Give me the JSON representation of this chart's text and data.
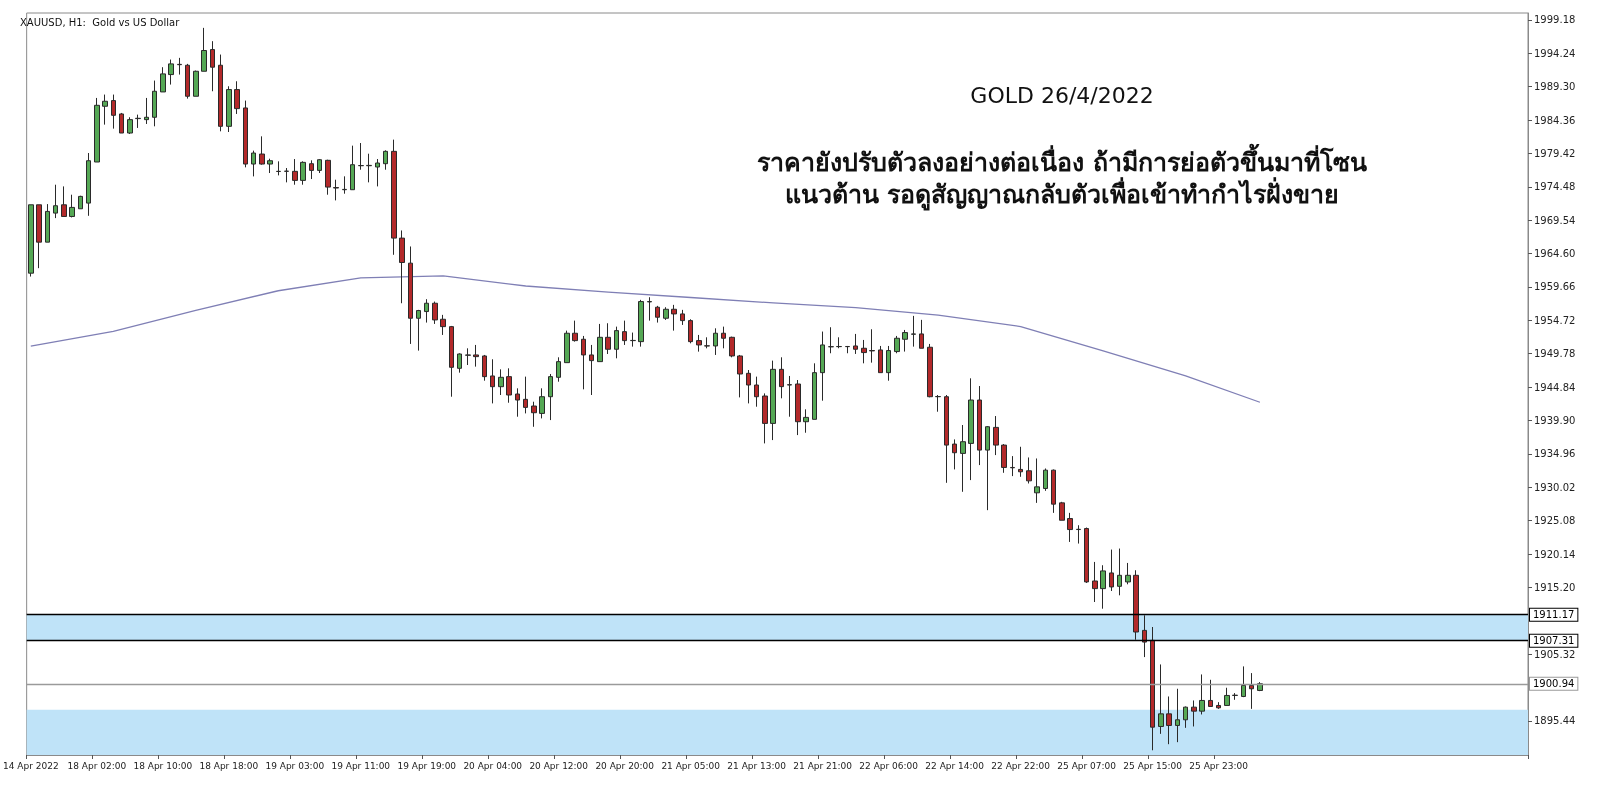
{
  "chart_data": {
    "type": "candlestick",
    "title": "XAUUSD, H1:  Gold vs US Dollar",
    "annotations": [
      "GOLD 26/4/2022",
      "ราคายังปรับตัวลงอย่างต่อเนื่อง ถ้ามีการย่อตัวขึ้นมาที่โซน",
      "แนวต้าน รอดูสัญญาณกลับตัวเพื่อเข้าทำกำไรฝั่งขาย"
    ],
    "categories": [
      "14 Apr 2022",
      null,
      null,
      null,
      null,
      null,
      null,
      null,
      "18 Apr 02:00",
      null,
      null,
      null,
      null,
      null,
      null,
      null,
      "18 Apr 10:00",
      null,
      null,
      null,
      null,
      null,
      null,
      null,
      "18 Apr 18:00",
      null,
      null,
      null,
      null,
      null,
      null,
      null,
      "19 Apr 03:00",
      null,
      null,
      null,
      null,
      null,
      null,
      null,
      "19 Apr 11:00",
      null,
      null,
      null,
      null,
      null,
      null,
      null,
      "19 Apr 19:00",
      null,
      null,
      null,
      null,
      null,
      null,
      null,
      "20 Apr 04:00",
      null,
      null,
      null,
      null,
      null,
      null,
      null,
      "20 Apr 12:00",
      null,
      null,
      null,
      null,
      null,
      null,
      null,
      "20 Apr 20:00",
      null,
      null,
      null,
      null,
      null,
      null,
      null,
      "21 Apr 05:00",
      null,
      null,
      null,
      null,
      null,
      null,
      null,
      "21 Apr 13:00",
      null,
      null,
      null,
      null,
      null,
      null,
      null,
      "21 Apr 21:00",
      null,
      null,
      null,
      null,
      null,
      null,
      null,
      "22 Apr 06:00",
      null,
      null,
      null,
      null,
      null,
      null,
      null,
      "22 Apr 14:00",
      null,
      null,
      null,
      null,
      null,
      null,
      null,
      "22 Apr 22:00",
      null,
      null,
      null,
      null,
      null,
      null,
      null,
      "25 Apr 07:00",
      null,
      null,
      null,
      null,
      null,
      null,
      null,
      "25 Apr 15:00",
      null,
      null,
      null,
      null,
      null,
      null,
      null,
      "25 Apr 23:00",
      null,
      null,
      null,
      null,
      null,
      null,
      null,
      null,
      null,
      null,
      null,
      null,
      null,
      null,
      null,
      null,
      null,
      null,
      null,
      null,
      null,
      null,
      null,
      null,
      null,
      null,
      null,
      null,
      null,
      null,
      null,
      null,
      null,
      null,
      null,
      null,
      null
    ],
    "ohlc": [
      [
        1961.7,
        1971.82,
        1961.2,
        1971.82
      ],
      [
        1971.82,
        1971.82,
        1962.44,
        1966.29
      ],
      [
        1966.29,
        1971.92,
        1966.29,
        1970.84
      ],
      [
        1970.59,
        1974.79,
        1969.85,
        1971.68
      ],
      [
        1971.82,
        1974.54,
        1970.09,
        1970.09
      ],
      [
        1970.09,
        1973.31,
        1969.95,
        1971.43
      ],
      [
        1971.23,
        1973.16,
        1971.23,
        1973.06
      ],
      [
        1972.07,
        1979.48,
        1970.19,
        1978.34
      ],
      [
        1978.15,
        1987.63,
        1978.15,
        1986.54
      ],
      [
        1986.4,
        1988.13,
        1983.68,
        1987.14
      ],
      [
        1987.24,
        1988.13,
        1983.09,
        1985.06
      ],
      [
        1985.26,
        1985.41,
        1982.44,
        1982.44
      ],
      [
        1982.44,
        1984.77,
        1982.3,
        1984.42
      ],
      [
        1984.57,
        1985.16,
        1983.19,
        1984.62
      ],
      [
        1984.42,
        1987.63,
        1983.78,
        1984.77
      ],
      [
        1984.77,
        1990.2,
        1983.43,
        1988.62
      ],
      [
        1988.52,
        1992.18,
        1988.52,
        1991.19
      ],
      [
        1991.09,
        1993.31,
        1989.61,
        1992.67
      ],
      [
        1992.6,
        1993.56,
        1991.09,
        1992.55
      ],
      [
        1992.47,
        1992.67,
        1987.53,
        1987.88
      ],
      [
        1987.88,
        1991.68,
        1987.88,
        1991.58
      ],
      [
        1991.58,
        1998.0,
        1991.58,
        1994.65
      ],
      [
        1994.79,
        1996.03,
        1988.62,
        1992.18
      ],
      [
        1992.47,
        1994.05,
        1982.69,
        1983.43
      ],
      [
        1983.43,
        1989.36,
        1982.59,
        1988.87
      ],
      [
        1988.87,
        1990.1,
        1985.26,
        1986.05
      ],
      [
        1986.15,
        1987.24,
        1977.36,
        1977.85
      ],
      [
        1977.85,
        1979.83,
        1976.02,
        1979.48
      ],
      [
        1979.33,
        1981.95,
        1977.75,
        1977.85
      ],
      [
        1977.85,
        1978.64,
        1976.52,
        1978.34
      ],
      [
        1976.77,
        1978.25,
        1976.17,
        1976.75
      ],
      [
        1976.8,
        1977.26,
        1975.14,
        1976.77
      ],
      [
        1976.77,
        1978.59,
        1974.79,
        1975.43
      ],
      [
        1975.43,
        1978.25,
        1974.79,
        1978.1
      ],
      [
        1977.9,
        1978.4,
        1975.63,
        1976.91
      ],
      [
        1976.91,
        1978.59,
        1976.52,
        1978.49
      ],
      [
        1978.4,
        1978.49,
        1973.31,
        1974.44
      ],
      [
        1974.37,
        1975.53,
        1972.47,
        1974.3
      ],
      [
        1974.05,
        1976.03,
        1973.46,
        1974.1
      ],
      [
        1974.05,
        1980.57,
        1974.05,
        1977.75
      ],
      [
        1977.6,
        1980.96,
        1977.01,
        1977.63
      ],
      [
        1977.65,
        1979.38,
        1975.14,
        1977.6
      ],
      [
        1977.41,
        1978.59,
        1974.54,
        1978.0
      ],
      [
        1977.9,
        1979.88,
        1977.01,
        1979.73
      ],
      [
        1979.73,
        1981.46,
        1964.42,
        1966.89
      ],
      [
        1966.89,
        1968.02,
        1957.25,
        1963.28
      ],
      [
        1963.18,
        1965.65,
        1951.23,
        1955.03
      ],
      [
        1955.03,
        1956.27,
        1950.24,
        1956.17
      ],
      [
        1956.02,
        1957.85,
        1954.39,
        1957.25
      ],
      [
        1957.25,
        1957.5,
        1954.19,
        1954.78
      ],
      [
        1954.88,
        1955.53,
        1952.56,
        1953.79
      ],
      [
        1953.79,
        1953.89,
        1943.42,
        1947.77
      ],
      [
        1947.62,
        1949.84,
        1946.98,
        1949.74
      ],
      [
        1949.55,
        1950.58,
        1948.11,
        1949.6
      ],
      [
        1949.6,
        1951.08,
        1947.87,
        1949.35
      ],
      [
        1949.45,
        1949.6,
        1945.79,
        1946.39
      ],
      [
        1946.49,
        1948.96,
        1942.43,
        1944.9
      ],
      [
        1944.9,
        1947.47,
        1943.67,
        1946.29
      ],
      [
        1946.39,
        1947.62,
        1942.53,
        1943.67
      ],
      [
        1943.82,
        1944.66,
        1940.46,
        1942.93
      ],
      [
        1943.03,
        1946.39,
        1940.95,
        1941.84
      ],
      [
        1942.04,
        1942.68,
        1938.97,
        1941.05
      ],
      [
        1940.95,
        1944.66,
        1940.21,
        1943.42
      ],
      [
        1943.42,
        1946.78,
        1939.96,
        1946.39
      ],
      [
        1946.29,
        1949.25,
        1945.64,
        1948.61
      ],
      [
        1948.46,
        1953.2,
        1948.46,
        1952.81
      ],
      [
        1952.81,
        1954.68,
        1951.57,
        1951.72
      ],
      [
        1951.92,
        1952.41,
        1944.51,
        1949.6
      ],
      [
        1949.6,
        1951.08,
        1943.67,
        1948.76
      ],
      [
        1948.61,
        1954.19,
        1948.61,
        1952.21
      ],
      [
        1952.21,
        1954.29,
        1949.74,
        1950.44
      ],
      [
        1950.44,
        1953.79,
        1949.1,
        1953.2
      ],
      [
        1953.05,
        1954.68,
        1951.08,
        1951.72
      ],
      [
        1951.75,
        1952.91,
        1950.83,
        1951.72
      ],
      [
        1951.57,
        1957.75,
        1950.83,
        1957.5
      ],
      [
        1957.45,
        1958.14,
        1954.68,
        1957.5
      ],
      [
        1956.66,
        1956.86,
        1954.39,
        1955.18
      ],
      [
        1955.03,
        1956.66,
        1954.78,
        1956.36
      ],
      [
        1956.36,
        1957.01,
        1953.2,
        1955.67
      ],
      [
        1955.67,
        1956.27,
        1954.04,
        1954.68
      ],
      [
        1954.68,
        1954.88,
        1951.32,
        1951.57
      ],
      [
        1951.72,
        1952.56,
        1950.09,
        1951.08
      ],
      [
        1950.95,
        1952.21,
        1950.58,
        1950.93
      ],
      [
        1950.93,
        1953.54,
        1949.6,
        1952.81
      ],
      [
        1952.81,
        1953.79,
        1950.58,
        1952.07
      ],
      [
        1952.21,
        1952.31,
        1949.25,
        1949.45
      ],
      [
        1949.45,
        1949.6,
        1943.32,
        1946.78
      ],
      [
        1946.88,
        1947.37,
        1942.43,
        1945.15
      ],
      [
        1945.15,
        1946.39,
        1941.94,
        1943.42
      ],
      [
        1943.52,
        1943.91,
        1936.51,
        1939.47
      ],
      [
        1939.47,
        1948.76,
        1937.0,
        1947.47
      ],
      [
        1947.47,
        1949.25,
        1943.18,
        1944.91
      ],
      [
        1945.2,
        1946.49,
        1940.46,
        1945.15
      ],
      [
        1945.3,
        1945.89,
        1937.74,
        1939.72
      ],
      [
        1939.72,
        1941.55,
        1938.09,
        1940.36
      ],
      [
        1940.07,
        1948.36,
        1940.07,
        1946.98
      ],
      [
        1946.98,
        1953.06,
        1942.83,
        1951.08
      ],
      [
        1950.8,
        1953.7,
        1949.85,
        1950.83
      ],
      [
        1950.83,
        1952.21,
        1950.59,
        1950.85
      ],
      [
        1950.85,
        1950.93,
        1949.85,
        1950.83
      ],
      [
        1950.93,
        1952.71,
        1949.75,
        1950.44
      ],
      [
        1950.59,
        1951.82,
        1948.36,
        1949.95
      ],
      [
        1950.25,
        1953.4,
        1948.46,
        1950.2
      ],
      [
        1950.34,
        1950.93,
        1946.98,
        1946.98
      ],
      [
        1946.98,
        1950.93,
        1945.79,
        1950.25
      ],
      [
        1950.1,
        1952.41,
        1949.85,
        1952.07
      ],
      [
        1951.92,
        1953.3,
        1950.1,
        1952.91
      ],
      [
        1952.66,
        1955.38,
        1950.83,
        1952.71
      ],
      [
        1952.71,
        1954.79,
        1950.59,
        1950.59
      ],
      [
        1950.74,
        1951.23,
        1943.33,
        1943.42
      ],
      [
        1943.42,
        1943.67,
        1941.2,
        1943.45
      ],
      [
        1943.42,
        1943.67,
        1930.68,
        1936.26
      ],
      [
        1936.41,
        1937.1,
        1932.66,
        1935.13
      ],
      [
        1935.03,
        1939.23,
        1929.35,
        1936.76
      ],
      [
        1936.51,
        1946.14,
        1931.08,
        1942.93
      ],
      [
        1942.93,
        1945.0,
        1933.3,
        1935.52
      ],
      [
        1935.52,
        1939.08,
        1926.63,
        1938.98
      ],
      [
        1938.88,
        1940.56,
        1934.78,
        1936.26
      ],
      [
        1936.26,
        1936.41,
        1932.16,
        1932.95
      ],
      [
        1932.95,
        1934.63,
        1931.67,
        1932.9
      ],
      [
        1932.66,
        1936.01,
        1931.57,
        1932.31
      ],
      [
        1932.46,
        1934.43,
        1930.58,
        1930.97
      ],
      [
        1929.2,
        1934.28,
        1927.71,
        1930.08
      ],
      [
        1929.84,
        1932.8,
        1929.49,
        1932.55
      ],
      [
        1932.55,
        1932.65,
        1926.23,
        1927.52
      ],
      [
        1927.71,
        1927.86,
        1925.14,
        1925.14
      ],
      [
        1925.39,
        1926.23,
        1921.93,
        1923.76
      ],
      [
        1923.8,
        1924.4,
        1921.69,
        1923.76
      ],
      [
        1923.91,
        1924.06,
        1915.86,
        1916.01
      ],
      [
        1916.15,
        1918.97,
        1913.04,
        1915.02
      ],
      [
        1915.02,
        1918.48,
        1912.05,
        1917.64
      ],
      [
        1917.34,
        1920.8,
        1914.67,
        1915.27
      ],
      [
        1915.36,
        1920.95,
        1914.03,
        1916.99
      ],
      [
        1916.01,
        1918.82,
        1915.66,
        1916.99
      ],
      [
        1916.99,
        1917.74,
        1907.46,
        1908.6
      ],
      [
        1908.84,
        1911.07,
        1904.89,
        1907.11
      ],
      [
        1907.36,
        1909.34,
        1891.1,
        1894.52
      ],
      [
        1894.62,
        1903.8,
        1893.53,
        1896.49
      ],
      [
        1896.49,
        1899.06,
        1892.0,
        1894.77
      ],
      [
        1894.77,
        1900.2,
        1892.3,
        1895.61
      ],
      [
        1895.61,
        1897.58,
        1894.42,
        1897.48
      ],
      [
        1897.48,
        1898.47,
        1894.62,
        1896.89
      ],
      [
        1896.89,
        1902.32,
        1896.4,
        1898.47
      ],
      [
        1898.47,
        1901.53,
        1897.58,
        1897.58
      ],
      [
        1897.73,
        1898.22,
        1897.23,
        1897.38
      ],
      [
        1897.73,
        1900.35,
        1897.73,
        1899.21
      ],
      [
        1899.21,
        1899.56,
        1898.57,
        1899.25
      ],
      [
        1899.06,
        1903.51,
        1898.96,
        1900.69
      ],
      [
        1900.69,
        1902.52,
        1897.23,
        1900.2
      ],
      [
        1899.95,
        1901.19,
        1899.85,
        1900.94
      ],
      null,
      null,
      null,
      null,
      null,
      null,
      null,
      null,
      null,
      null,
      null,
      null,
      null,
      null,
      null,
      null,
      null,
      null,
      null,
      null,
      null,
      null,
      null,
      null,
      null,
      null,
      null,
      null,
      null,
      null,
      null,
      null
    ],
    "series": [
      {
        "type": "line",
        "color": "#7f7fb5",
        "values": [
          1950.9,
          null,
          null,
          null,
          null,
          null,
          null,
          null,
          null,
          null,
          1953.1,
          null,
          null,
          null,
          null,
          null,
          null,
          null,
          null,
          null,
          1956.2,
          null,
          null,
          null,
          null,
          null,
          null,
          null,
          null,
          null,
          1959.1,
          null,
          null,
          null,
          null,
          null,
          null,
          null,
          null,
          null,
          1961.0,
          null,
          null,
          null,
          null,
          null,
          null,
          null,
          null,
          null,
          1961.3,
          null,
          null,
          null,
          null,
          null,
          null,
          null,
          null,
          null,
          1959.8,
          null,
          null,
          null,
          null,
          null,
          null,
          null,
          null,
          null,
          1958.9,
          null,
          null,
          null,
          null,
          null,
          null,
          null,
          null,
          null,
          1958.1,
          null,
          null,
          null,
          null,
          null,
          null,
          null,
          null,
          null,
          1957.3,
          null,
          null,
          null,
          null,
          null,
          null,
          null,
          null,
          null,
          1956.6,
          null,
          null,
          null,
          null,
          null,
          null,
          null,
          null,
          null,
          1955.5,
          null,
          null,
          null,
          null,
          null,
          null,
          null,
          null,
          null,
          1953.8,
          null,
          null,
          null,
          null,
          null,
          null,
          null,
          null,
          null,
          1950.2,
          null,
          null,
          null,
          null,
          null,
          null,
          null,
          null,
          null,
          1946.5,
          null,
          null,
          null,
          null,
          null,
          null,
          null,
          null,
          1942.6,
          null,
          null,
          null,
          null,
          null,
          null,
          null,
          null,
          null,
          null,
          null,
          null,
          null,
          null,
          null,
          null,
          null,
          null,
          null,
          null,
          null,
          null,
          null,
          null,
          null,
          null,
          null,
          null,
          null,
          null,
          null,
          null
        ]
      }
    ],
    "ylim": [
      1890.4,
      2000.2
    ],
    "yticks": [
      1895.44,
      1905.32,
      {
        "value": 1915.2,
        "label": "1915.20"
      },
      1920.14,
      1925.08,
      1930.02,
      1934.96,
      {
        "value": 1939.9,
        "label": "1939.90"
      },
      1944.84,
      1949.78,
      1954.72,
      1959.66,
      {
        "value": 1964.6,
        "label": "1964.60"
      },
      1969.54,
      1974.48,
      1979.42,
      1984.36,
      {
        "value": 1989.3,
        "label": "1989.30"
      },
      1994.24,
      1999.18
    ],
    "ref_lines": [
      {
        "axis": "y",
        "value": 1911.17,
        "label": "1911.17",
        "color": "#000000"
      },
      {
        "axis": "y",
        "value": 1907.31,
        "label": "1907.31",
        "color": "#000000"
      },
      {
        "axis": "y",
        "value": 1900.94,
        "label": "1900.94",
        "color": "#9a9a9a"
      }
    ],
    "bands": [
      {
        "axis": "y",
        "from": 1890.4,
        "to": 1897.1,
        "color": "#bfe3f8"
      },
      {
        "axis": "y",
        "from": 1907.31,
        "to": 1911.17,
        "color": "#bfe3f8"
      }
    ],
    "grid": false
  }
}
